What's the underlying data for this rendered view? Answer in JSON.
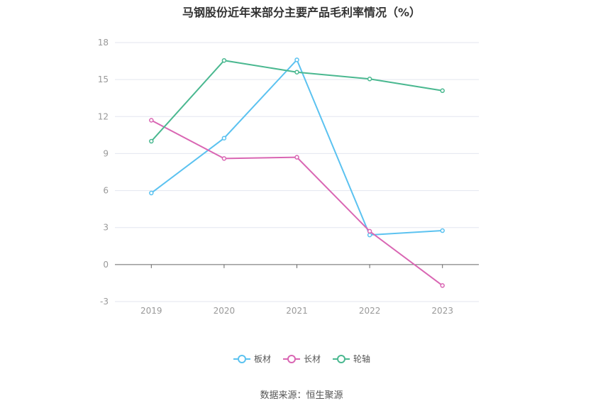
{
  "title": "马钢股份近年来部分主要产品毛利率情况（%）",
  "source": "数据来源：恒生聚源",
  "chart_data": {
    "type": "line",
    "title": "马钢股份近年来部分主要产品毛利率情况（%）",
    "categories": [
      "2019",
      "2020",
      "2021",
      "2022",
      "2023"
    ],
    "y_ticks": [
      "18",
      "15",
      "12",
      "9",
      "6",
      "3",
      "0",
      "-3"
    ],
    "ylim": [
      -3,
      18
    ],
    "grid": true,
    "legend_position": "bottom",
    "series": [
      {
        "name": "板材",
        "color": "#5bc2f0",
        "values": [
          5.8,
          10.25,
          16.6,
          2.4,
          2.75
        ]
      },
      {
        "name": "长材",
        "color": "#d966b3",
        "values": [
          11.7,
          8.6,
          8.7,
          2.7,
          -1.7
        ]
      },
      {
        "name": "轮轴",
        "color": "#4ab890",
        "values": [
          10.0,
          16.55,
          15.6,
          15.05,
          14.1
        ]
      }
    ]
  }
}
